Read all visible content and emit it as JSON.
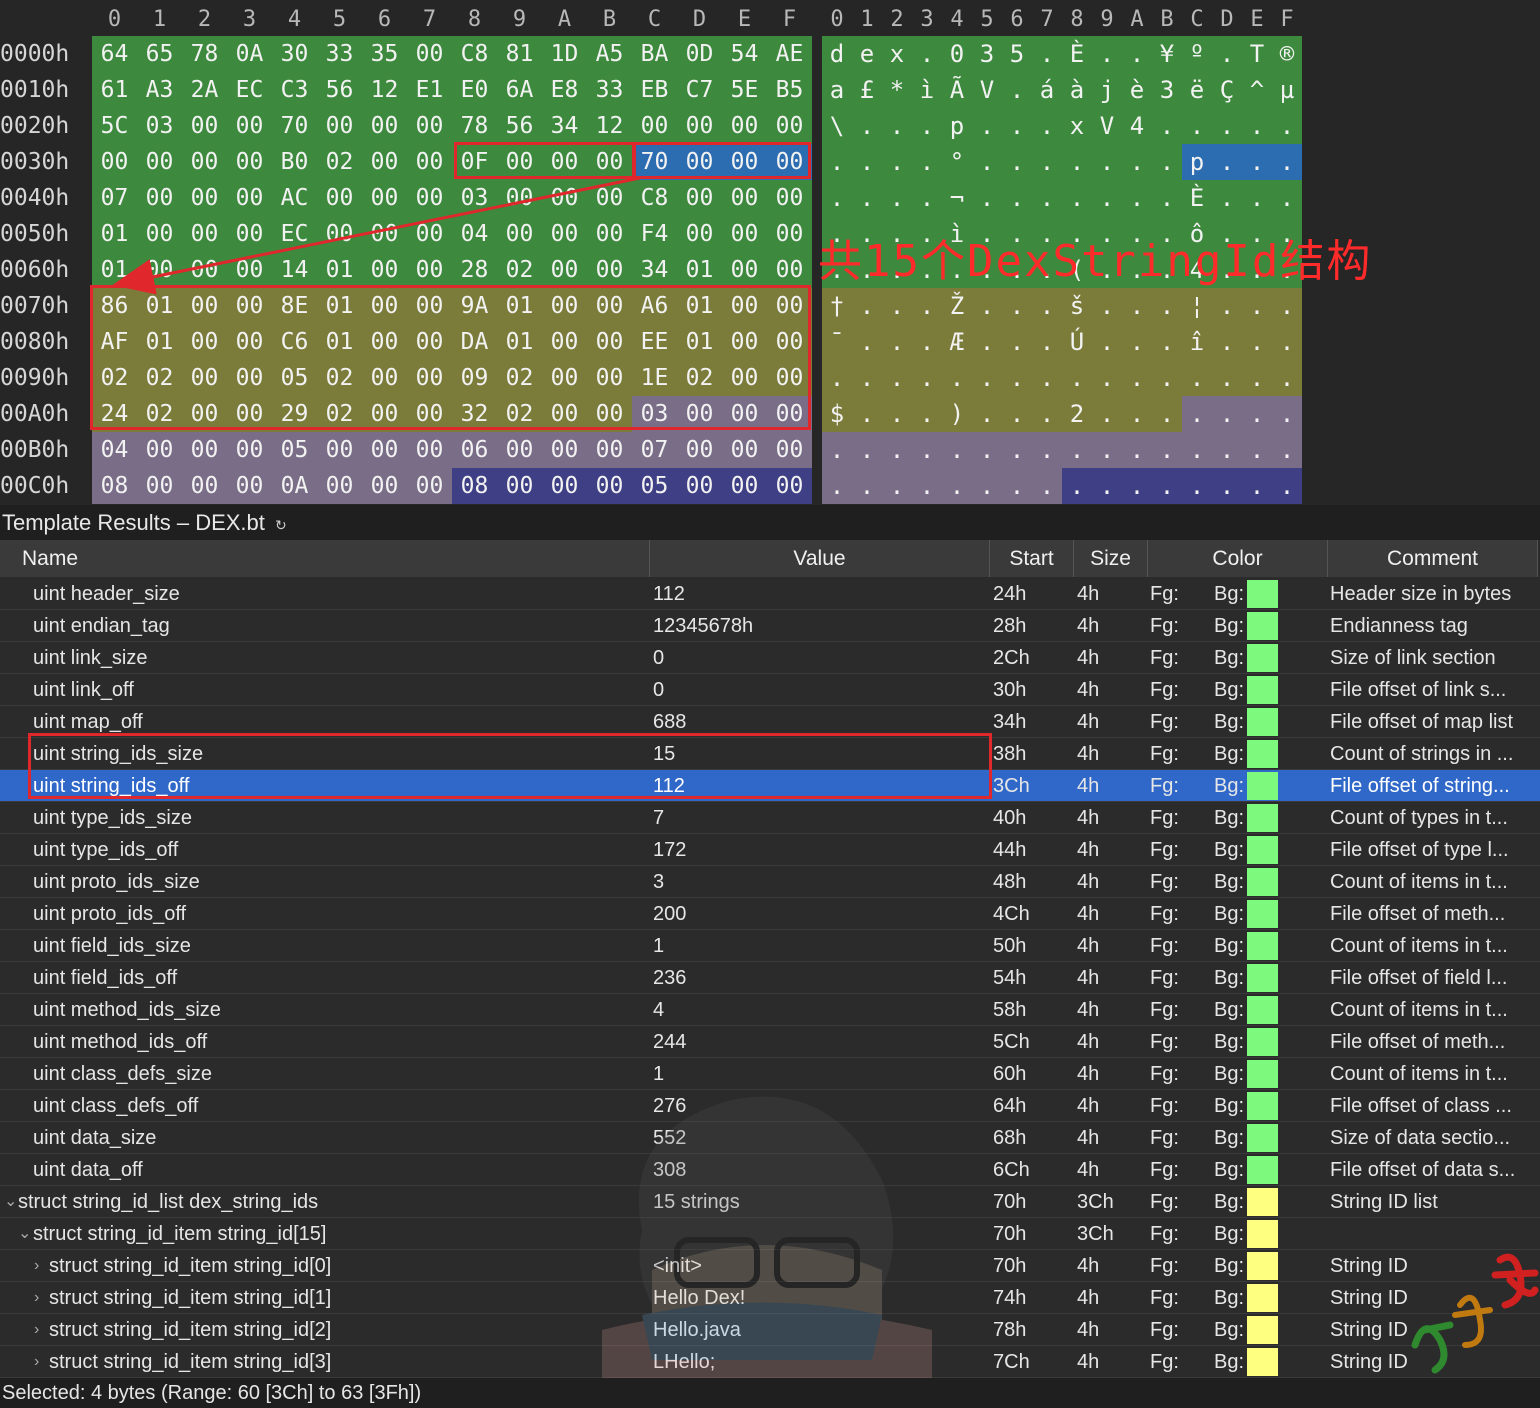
{
  "hex_view": {
    "header_hex": [
      "0",
      "1",
      "2",
      "3",
      "4",
      "5",
      "6",
      "7",
      "8",
      "9",
      "A",
      "B",
      "C",
      "D",
      "E",
      "F"
    ],
    "header_ascii": [
      "0",
      "1",
      "2",
      "3",
      "4",
      "5",
      "6",
      "7",
      "8",
      "9",
      "A",
      "B",
      "C",
      "D",
      "E",
      "F"
    ],
    "colors": {
      "green": "#3d8a3e",
      "olive": "#7b7b3a",
      "purple": "#7a6d87",
      "navy": "#3f3f85",
      "blue": "#2c6cb0"
    },
    "rows": [
      {
        "offset": "0000h",
        "bytes": [
          "64",
          "65",
          "78",
          "0A",
          "30",
          "33",
          "35",
          "00",
          "C8",
          "81",
          "1D",
          "A5",
          "BA",
          "0D",
          "54",
          "AE"
        ],
        "ascii": [
          "d",
          "e",
          "x",
          ".",
          "0",
          "3",
          "5",
          ".",
          "È",
          ".",
          ".",
          "¥",
          "º",
          ".",
          "T",
          "®"
        ]
      },
      {
        "offset": "0010h",
        "bytes": [
          "61",
          "A3",
          "2A",
          "EC",
          "C3",
          "56",
          "12",
          "E1",
          "E0",
          "6A",
          "E8",
          "33",
          "EB",
          "C7",
          "5E",
          "B5"
        ],
        "ascii": [
          "a",
          "£",
          "*",
          "ì",
          "Ã",
          "V",
          ".",
          "á",
          "à",
          "j",
          "è",
          "3",
          "ë",
          "Ç",
          "^",
          "µ"
        ]
      },
      {
        "offset": "0020h",
        "bytes": [
          "5C",
          "03",
          "00",
          "00",
          "70",
          "00",
          "00",
          "00",
          "78",
          "56",
          "34",
          "12",
          "00",
          "00",
          "00",
          "00"
        ],
        "ascii": [
          "\\",
          ".",
          ".",
          ".",
          "p",
          ".",
          ".",
          ".",
          "x",
          "V",
          "4",
          ".",
          ".",
          ".",
          ".",
          "."
        ]
      },
      {
        "offset": "0030h",
        "bytes": [
          "00",
          "00",
          "00",
          "00",
          "B0",
          "02",
          "00",
          "00",
          "0F",
          "00",
          "00",
          "00",
          "70",
          "00",
          "00",
          "00"
        ],
        "ascii": [
          ".",
          ".",
          ".",
          ".",
          "°",
          ".",
          ".",
          ".",
          ".",
          ".",
          ".",
          ".",
          "p",
          ".",
          ".",
          "."
        ]
      },
      {
        "offset": "0040h",
        "bytes": [
          "07",
          "00",
          "00",
          "00",
          "AC",
          "00",
          "00",
          "00",
          "03",
          "00",
          "00",
          "00",
          "C8",
          "00",
          "00",
          "00"
        ],
        "ascii": [
          ".",
          ".",
          ".",
          ".",
          "¬",
          ".",
          ".",
          ".",
          ".",
          ".",
          ".",
          ".",
          "È",
          ".",
          ".",
          "."
        ]
      },
      {
        "offset": "0050h",
        "bytes": [
          "01",
          "00",
          "00",
          "00",
          "EC",
          "00",
          "00",
          "00",
          "04",
          "00",
          "00",
          "00",
          "F4",
          "00",
          "00",
          "00"
        ],
        "ascii": [
          ".",
          ".",
          ".",
          ".",
          "ì",
          ".",
          ".",
          ".",
          ".",
          ".",
          ".",
          ".",
          "ô",
          ".",
          ".",
          "."
        ]
      },
      {
        "offset": "0060h",
        "bytes": [
          "01",
          "00",
          "00",
          "00",
          "14",
          "01",
          "00",
          "00",
          "28",
          "02",
          "00",
          "00",
          "34",
          "01",
          "00",
          "00"
        ],
        "ascii": [
          ".",
          ".",
          ".",
          ".",
          ".",
          ".",
          ".",
          ".",
          "(",
          ".",
          ".",
          ".",
          "4",
          ".",
          ".",
          "."
        ]
      },
      {
        "offset": "0070h",
        "bytes": [
          "86",
          "01",
          "00",
          "00",
          "8E",
          "01",
          "00",
          "00",
          "9A",
          "01",
          "00",
          "00",
          "A6",
          "01",
          "00",
          "00"
        ],
        "ascii": [
          "†",
          ".",
          ".",
          ".",
          "Ž",
          ".",
          ".",
          ".",
          "š",
          ".",
          ".",
          ".",
          "¦",
          ".",
          ".",
          "."
        ]
      },
      {
        "offset": "0080h",
        "bytes": [
          "AF",
          "01",
          "00",
          "00",
          "C6",
          "01",
          "00",
          "00",
          "DA",
          "01",
          "00",
          "00",
          "EE",
          "01",
          "00",
          "00"
        ],
        "ascii": [
          "¯",
          ".",
          ".",
          ".",
          "Æ",
          ".",
          ".",
          ".",
          "Ú",
          ".",
          ".",
          ".",
          "î",
          ".",
          ".",
          "."
        ]
      },
      {
        "offset": "0090h",
        "bytes": [
          "02",
          "02",
          "00",
          "00",
          "05",
          "02",
          "00",
          "00",
          "09",
          "02",
          "00",
          "00",
          "1E",
          "02",
          "00",
          "00"
        ],
        "ascii": [
          ".",
          ".",
          ".",
          ".",
          ".",
          ".",
          ".",
          ".",
          ".",
          ".",
          ".",
          ".",
          ".",
          ".",
          ".",
          "."
        ]
      },
      {
        "offset": "00A0h",
        "bytes": [
          "24",
          "02",
          "00",
          "00",
          "29",
          "02",
          "00",
          "00",
          "32",
          "02",
          "00",
          "00",
          "03",
          "00",
          "00",
          "00"
        ],
        "ascii": [
          "$",
          ".",
          ".",
          ".",
          ")",
          ".",
          ".",
          ".",
          "2",
          ".",
          ".",
          ".",
          ".",
          ".",
          ".",
          "."
        ]
      },
      {
        "offset": "00B0h",
        "bytes": [
          "04",
          "00",
          "00",
          "00",
          "05",
          "00",
          "00",
          "00",
          "06",
          "00",
          "00",
          "00",
          "07",
          "00",
          "00",
          "00"
        ],
        "ascii": [
          ".",
          ".",
          ".",
          ".",
          ".",
          ".",
          ".",
          ".",
          ".",
          ".",
          ".",
          ".",
          ".",
          ".",
          ".",
          "."
        ]
      },
      {
        "offset": "00C0h",
        "bytes": [
          "08",
          "00",
          "00",
          "00",
          "0A",
          "00",
          "00",
          "00",
          "08",
          "00",
          "00",
          "00",
          "05",
          "00",
          "00",
          "00"
        ],
        "ascii": [
          ".",
          ".",
          ".",
          ".",
          ".",
          ".",
          ".",
          ".",
          ".",
          ".",
          ".",
          ".",
          ".",
          ".",
          ".",
          "."
        ]
      }
    ],
    "annotation": "共15个DexStringId结构"
  },
  "template": {
    "title": "Template Results – DEX.bt",
    "refresh_icon": "refresh-icon",
    "columns": [
      "Name",
      "Value",
      "Start",
      "Size",
      "Color",
      "Comment"
    ],
    "swatch_colors": {
      "green": "#7dfa7d",
      "yellow": "#fefe80"
    },
    "rows": [
      {
        "name": "uint header_size",
        "value": "112",
        "start": "24h",
        "size": "4h",
        "fg": "Fg:",
        "bg": "Bg:",
        "swatch": "green",
        "comment": "Header size in bytes",
        "indent": 1
      },
      {
        "name": "uint endian_tag",
        "value": "12345678h",
        "start": "28h",
        "size": "4h",
        "fg": "Fg:",
        "bg": "Bg:",
        "swatch": "green",
        "comment": "Endianness tag",
        "indent": 1
      },
      {
        "name": "uint link_size",
        "value": "0",
        "start": "2Ch",
        "size": "4h",
        "fg": "Fg:",
        "bg": "Bg:",
        "swatch": "green",
        "comment": "Size of link section",
        "indent": 1
      },
      {
        "name": "uint link_off",
        "value": "0",
        "start": "30h",
        "size": "4h",
        "fg": "Fg:",
        "bg": "Bg:",
        "swatch": "green",
        "comment": "File offset of link s...",
        "indent": 1
      },
      {
        "name": "uint map_off",
        "value": "688",
        "start": "34h",
        "size": "4h",
        "fg": "Fg:",
        "bg": "Bg:",
        "swatch": "green",
        "comment": "File offset of map list",
        "indent": 1
      },
      {
        "name": "uint string_ids_size",
        "value": "15",
        "start": "38h",
        "size": "4h",
        "fg": "Fg:",
        "bg": "Bg:",
        "swatch": "green",
        "comment": "Count of strings in ...",
        "indent": 1
      },
      {
        "name": "uint string_ids_off",
        "value": "112",
        "start": "3Ch",
        "size": "4h",
        "fg": "Fg:",
        "bg": "Bg:",
        "swatch": "green",
        "comment": "File offset of string...",
        "indent": 1,
        "selected": true
      },
      {
        "name": "uint type_ids_size",
        "value": "7",
        "start": "40h",
        "size": "4h",
        "fg": "Fg:",
        "bg": "Bg:",
        "swatch": "green",
        "comment": "Count of types in t...",
        "indent": 1
      },
      {
        "name": "uint type_ids_off",
        "value": "172",
        "start": "44h",
        "size": "4h",
        "fg": "Fg:",
        "bg": "Bg:",
        "swatch": "green",
        "comment": "File offset of type l...",
        "indent": 1
      },
      {
        "name": "uint proto_ids_size",
        "value": "3",
        "start": "48h",
        "size": "4h",
        "fg": "Fg:",
        "bg": "Bg:",
        "swatch": "green",
        "comment": "Count of items in t...",
        "indent": 1
      },
      {
        "name": "uint proto_ids_off",
        "value": "200",
        "start": "4Ch",
        "size": "4h",
        "fg": "Fg:",
        "bg": "Bg:",
        "swatch": "green",
        "comment": "File offset of meth...",
        "indent": 1
      },
      {
        "name": "uint field_ids_size",
        "value": "1",
        "start": "50h",
        "size": "4h",
        "fg": "Fg:",
        "bg": "Bg:",
        "swatch": "green",
        "comment": "Count of items in t...",
        "indent": 1
      },
      {
        "name": "uint field_ids_off",
        "value": "236",
        "start": "54h",
        "size": "4h",
        "fg": "Fg:",
        "bg": "Bg:",
        "swatch": "green",
        "comment": "File offset of field l...",
        "indent": 1
      },
      {
        "name": "uint method_ids_size",
        "value": "4",
        "start": "58h",
        "size": "4h",
        "fg": "Fg:",
        "bg": "Bg:",
        "swatch": "green",
        "comment": "Count of items in t...",
        "indent": 1
      },
      {
        "name": "uint method_ids_off",
        "value": "244",
        "start": "5Ch",
        "size": "4h",
        "fg": "Fg:",
        "bg": "Bg:",
        "swatch": "green",
        "comment": "File offset of meth...",
        "indent": 1
      },
      {
        "name": "uint class_defs_size",
        "value": "1",
        "start": "60h",
        "size": "4h",
        "fg": "Fg:",
        "bg": "Bg:",
        "swatch": "green",
        "comment": "Count of items in t...",
        "indent": 1
      },
      {
        "name": "uint class_defs_off",
        "value": "276",
        "start": "64h",
        "size": "4h",
        "fg": "Fg:",
        "bg": "Bg:",
        "swatch": "green",
        "comment": "File offset of class ...",
        "indent": 1
      },
      {
        "name": "uint data_size",
        "value": "552",
        "start": "68h",
        "size": "4h",
        "fg": "Fg:",
        "bg": "Bg:",
        "swatch": "green",
        "comment": "Size of data sectio...",
        "indent": 1
      },
      {
        "name": "uint data_off",
        "value": "308",
        "start": "6Ch",
        "size": "4h",
        "fg": "Fg:",
        "bg": "Bg:",
        "swatch": "green",
        "comment": "File offset of data s...",
        "indent": 1
      },
      {
        "name": "struct string_id_list dex_string_ids",
        "value": "15 strings",
        "start": "70h",
        "size": "3Ch",
        "fg": "Fg:",
        "bg": "Bg:",
        "swatch": "yellow",
        "comment": "String ID list",
        "indent": 0,
        "expander": "⌄"
      },
      {
        "name": "struct string_id_item string_id[15]",
        "value": "",
        "start": "70h",
        "size": "3Ch",
        "fg": "Fg:",
        "bg": "Bg:",
        "swatch": "yellow",
        "comment": "",
        "indent": 1,
        "expander": "⌄"
      },
      {
        "name": "struct string_id_item string_id[0]",
        "value": "<init>",
        "start": "70h",
        "size": "4h",
        "fg": "Fg:",
        "bg": "Bg:",
        "swatch": "yellow",
        "comment": "String ID",
        "indent": 2,
        "expander": "›"
      },
      {
        "name": "struct string_id_item string_id[1]",
        "value": "Hello Dex!",
        "start": "74h",
        "size": "4h",
        "fg": "Fg:",
        "bg": "Bg:",
        "swatch": "yellow",
        "comment": "String ID",
        "indent": 2,
        "expander": "›"
      },
      {
        "name": "struct string_id_item string_id[2]",
        "value": "Hello.java",
        "start": "78h",
        "size": "4h",
        "fg": "Fg:",
        "bg": "Bg:",
        "swatch": "yellow",
        "comment": "String ID",
        "indent": 2,
        "expander": "›"
      },
      {
        "name": "struct string_id_item string_id[3]",
        "value": "LHello;",
        "start": "7Ch",
        "size": "4h",
        "fg": "Fg:",
        "bg": "Bg:",
        "swatch": "yellow",
        "comment": "String ID",
        "indent": 2,
        "expander": "›"
      }
    ]
  },
  "status_bar": {
    "text": "Selected: 4 bytes (Range: 60 [3Ch] to 63 [3Fh])"
  },
  "watermark": {
    "icon": "anime-character-watermark"
  },
  "stamp": {
    "icon": "calligraphy-stamp",
    "text": "夏冰凌"
  }
}
